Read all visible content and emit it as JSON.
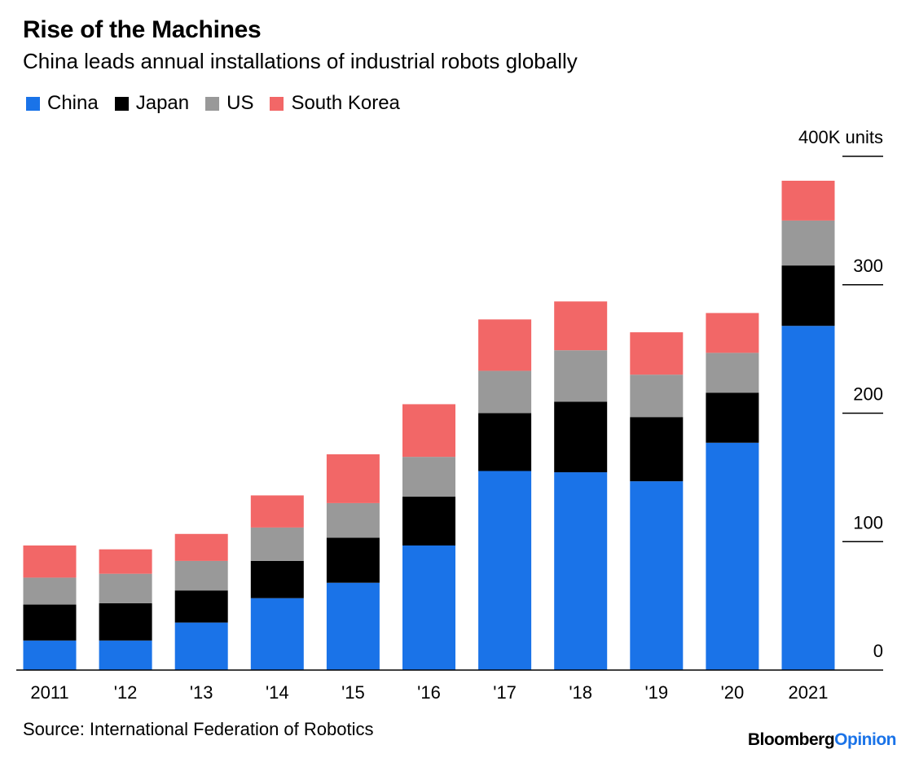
{
  "title": "Rise of the Machines",
  "subtitle": "China leads annual installations of industrial robots globally",
  "source": "Source: International Federation of Robotics",
  "brand": {
    "main": "Bloomberg",
    "accent": "Opinion"
  },
  "chart_data": {
    "type": "bar",
    "stacked": true,
    "categories": [
      "2011",
      "'12",
      "'13",
      "'14",
      "'15",
      "'16",
      "'17",
      "'18",
      "'19",
      "'20",
      "2021"
    ],
    "series": [
      {
        "name": "China",
        "color": "#1a73e8",
        "values": [
          23,
          23,
          37,
          56,
          68,
          97,
          155,
          154,
          147,
          177,
          268
        ]
      },
      {
        "name": "Japan",
        "color": "#000000",
        "values": [
          28,
          29,
          25,
          29,
          35,
          38,
          45,
          55,
          50,
          39,
          47
        ]
      },
      {
        "name": "US",
        "color": "#999999",
        "values": [
          21,
          23,
          23,
          26,
          27,
          31,
          33,
          40,
          33,
          31,
          35
        ]
      },
      {
        "name": "South Korea",
        "color": "#f26767",
        "values": [
          25,
          19,
          21,
          25,
          38,
          41,
          40,
          38,
          33,
          31,
          31
        ]
      }
    ],
    "y_ticks": [
      {
        "value": 400,
        "label": "400K units"
      },
      {
        "value": 300,
        "label": "300"
      },
      {
        "value": 200,
        "label": "200"
      },
      {
        "value": 100,
        "label": "100"
      },
      {
        "value": 0,
        "label": "0"
      }
    ],
    "ylim": [
      0,
      400
    ],
    "axis_position": "right",
    "legend_position": "top-left"
  }
}
